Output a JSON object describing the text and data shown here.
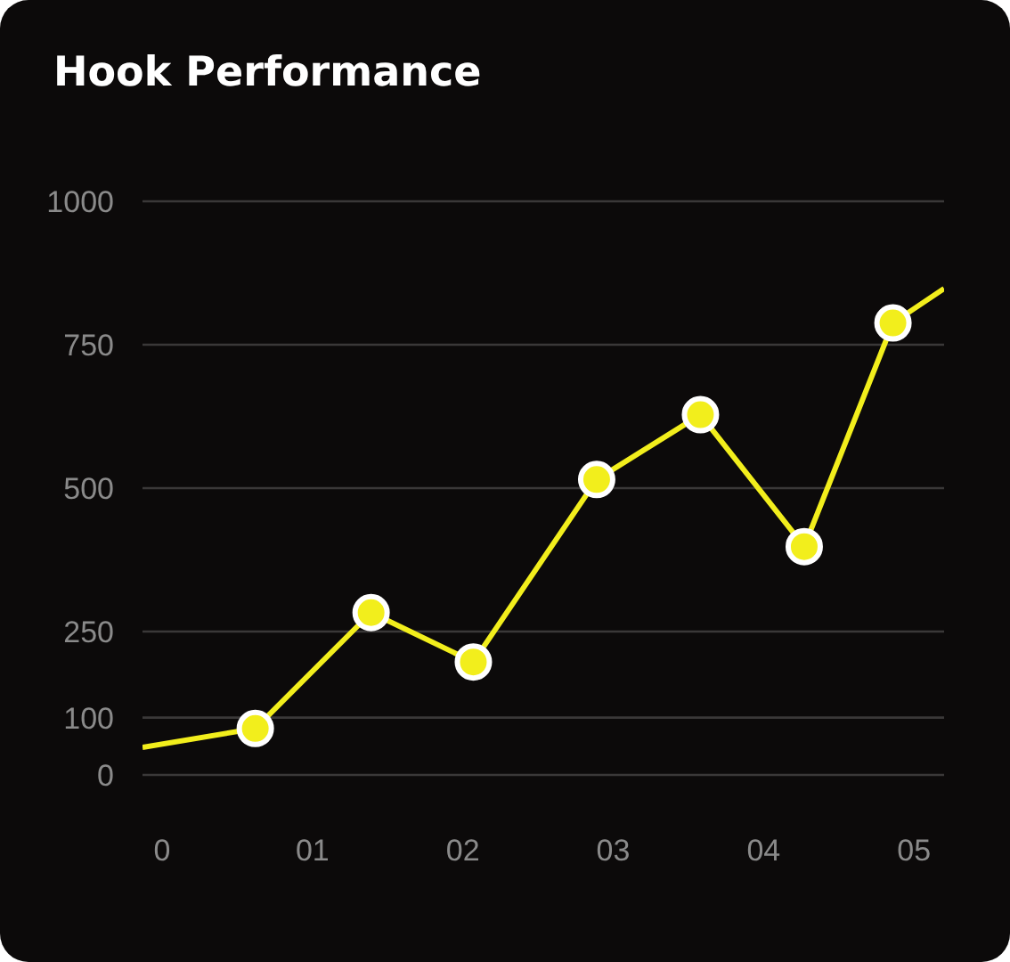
{
  "chart_data": {
    "type": "line",
    "title": "Hook Performance",
    "x": [
      -0.13,
      0.62,
      1.39,
      2.07,
      2.89,
      3.58,
      4.27,
      4.86,
      5.2
    ],
    "series": [
      {
        "color": "#f2ee1c",
        "values": [
          48,
          81,
          283,
          197,
          515,
          628,
          398,
          788,
          848
        ]
      }
    ],
    "xlim": [
      -0.13,
      5.2
    ],
    "xticks": [
      0,
      {
        "value": 1,
        "label": "01"
      },
      {
        "value": 2,
        "label": "02"
      },
      {
        "value": 3,
        "label": "03"
      },
      {
        "value": 4,
        "label": "04"
      },
      {
        "value": 5,
        "label": "05"
      }
    ],
    "ylim": [
      0,
      1000
    ],
    "yticks": [
      0,
      100,
      250,
      500,
      750,
      1000
    ],
    "grid": "y",
    "marker": "circle",
    "line_style": "solid",
    "legend": false
  }
}
